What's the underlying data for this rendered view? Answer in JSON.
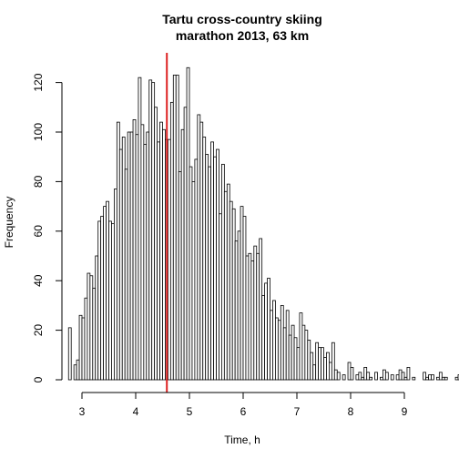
{
  "chart_data": {
    "type": "bar",
    "title": [
      "Tartu cross-country skiing",
      "marathon 2013, 63 km"
    ],
    "xlabel": "Time, h",
    "ylabel": "Frequency",
    "xlim": [
      2.7,
      9.25
    ],
    "ylim": [
      0,
      130
    ],
    "x_ticks": [
      3,
      4,
      5,
      6,
      7,
      8,
      9
    ],
    "y_ticks": [
      0,
      20,
      40,
      60,
      80,
      100,
      120
    ],
    "bin_start": 2.75,
    "bin_width": 0.05,
    "values": [
      21,
      0,
      6,
      8,
      26,
      25,
      33,
      43,
      42,
      37,
      50,
      64,
      66,
      70,
      72,
      64,
      63,
      77,
      104,
      93,
      98,
      85,
      100,
      100,
      105,
      99,
      122,
      103,
      95,
      100,
      121,
      120,
      110,
      96,
      104,
      101,
      97,
      97,
      112,
      123,
      123,
      84,
      101,
      110,
      126,
      86,
      80,
      89,
      107,
      104,
      98,
      91,
      86,
      96,
      90,
      93,
      67,
      87,
      76,
      79,
      72,
      69,
      56,
      60,
      70,
      66,
      50,
      51,
      48,
      54,
      51,
      57,
      34,
      39,
      41,
      28,
      32,
      25,
      24,
      30,
      21,
      28,
      18,
      22,
      17,
      13,
      27,
      22,
      20,
      16,
      11,
      6,
      15,
      13,
      13,
      9,
      11,
      7,
      15,
      4,
      3,
      0,
      2,
      0,
      7,
      5,
      0,
      2,
      3,
      1,
      5,
      3,
      1,
      0,
      3,
      0,
      1,
      4,
      3,
      0,
      2,
      0,
      2,
      4,
      3,
      1,
      5,
      0,
      1,
      0,
      0,
      0,
      3,
      1,
      2,
      2,
      0,
      1,
      3,
      1,
      1,
      0,
      0,
      0,
      1,
      2,
      1,
      0,
      0,
      1,
      1,
      0
    ],
    "reference_line": {
      "x": 4.58,
      "color": "#dd2222"
    },
    "bar_fill": "#ffffff",
    "bar_stroke": "#000000",
    "grid": false
  }
}
